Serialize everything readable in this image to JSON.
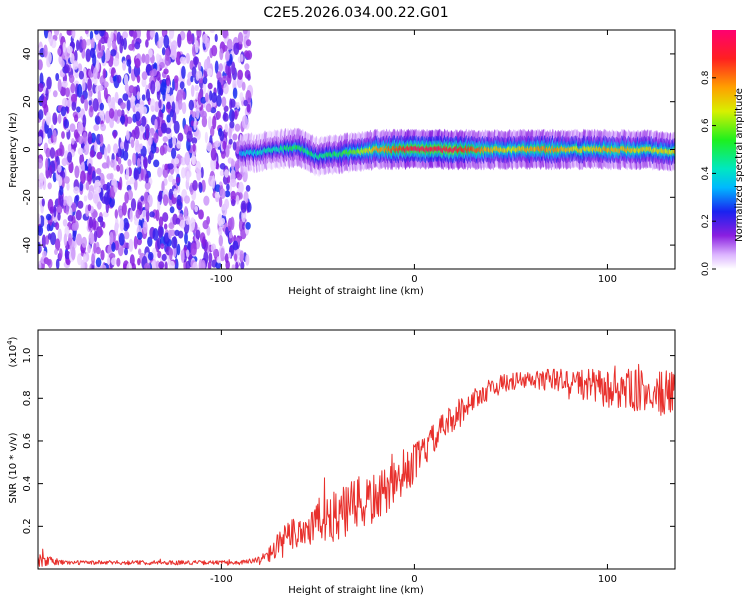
{
  "figure": {
    "title": "C2E5.2026.034.00.22.G01"
  },
  "chart_data": [
    {
      "type": "heatmap",
      "title": "C2E5.2026.034.00.22.G01",
      "xlabel": "Height of straight line (km)",
      "ylabel": "Frequency (Hz)",
      "xlim": [
        -195,
        135
      ],
      "ylim": [
        -50,
        50
      ],
      "x_ticks": [
        -100,
        0,
        100
      ],
      "x_tick_labels": [
        "-100",
        "0",
        "100"
      ],
      "y_ticks": [
        -40,
        -20,
        0,
        20,
        40
      ],
      "y_tick_labels": [
        "-40",
        "-20",
        "0",
        "20",
        "40"
      ],
      "colorbar": {
        "label": "Normalized spectral amplitude",
        "range": [
          0,
          1
        ],
        "ticks": [
          0.0,
          0.2,
          0.4,
          0.6,
          0.8
        ],
        "tick_labels": [
          "0.0",
          "0.2",
          "0.4",
          "0.6",
          "0.8"
        ]
      },
      "noise_region": {
        "x_range": [
          -195,
          -85
        ],
        "freq_range": [
          -50,
          50
        ]
      },
      "signal_band": [
        {
          "x": -90,
          "freq": -2,
          "amp": 0.35
        },
        {
          "x": -80,
          "freq": -1,
          "amp": 0.4
        },
        {
          "x": -70,
          "freq": 0,
          "amp": 0.45
        },
        {
          "x": -60,
          "freq": 1,
          "amp": 0.5
        },
        {
          "x": -50,
          "freq": -3,
          "amp": 0.45
        },
        {
          "x": -40,
          "freq": -2,
          "amp": 0.5
        },
        {
          "x": -30,
          "freq": -1,
          "amp": 0.6
        },
        {
          "x": -20,
          "freq": 0,
          "amp": 0.75
        },
        {
          "x": -10,
          "freq": 0,
          "amp": 0.85
        },
        {
          "x": 0,
          "freq": 0,
          "amp": 0.95
        },
        {
          "x": 10,
          "freq": 0,
          "amp": 0.95
        },
        {
          "x": 20,
          "freq": 0,
          "amp": 0.95
        },
        {
          "x": 30,
          "freq": 0,
          "amp": 0.85
        },
        {
          "x": 40,
          "freq": 0,
          "amp": 0.75
        },
        {
          "x": 50,
          "freq": 0,
          "amp": 0.7
        },
        {
          "x": 60,
          "freq": 0,
          "amp": 0.75
        },
        {
          "x": 70,
          "freq": 0,
          "amp": 0.8
        },
        {
          "x": 80,
          "freq": 0,
          "amp": 0.7
        },
        {
          "x": 90,
          "freq": 0,
          "amp": 0.7
        },
        {
          "x": 100,
          "freq": 0,
          "amp": 0.75
        },
        {
          "x": 110,
          "freq": 0,
          "amp": 0.75
        },
        {
          "x": 120,
          "freq": 0,
          "amp": 0.7
        },
        {
          "x": 130,
          "freq": -1,
          "amp": 0.7
        }
      ]
    },
    {
      "type": "line",
      "xlabel": "Height of straight line (km)",
      "ylabel": "SNR (10 * v/v)",
      "y_scale_label": "(x10",
      "y_scale_exponent": "4",
      "y_scale_close": ")",
      "xlim": [
        -195,
        135
      ],
      "ylim": [
        0.0,
        1.12
      ],
      "x_ticks": [
        -100,
        0,
        100
      ],
      "x_tick_labels": [
        "-100",
        "0",
        "100"
      ],
      "y_ticks": [
        0.2,
        0.4,
        0.6,
        0.8,
        1.0
      ],
      "y_tick_labels": [
        "0.2",
        "0.4",
        "0.6",
        "0.8",
        "1.0"
      ],
      "line_color": "#e8302c",
      "series": [
        {
          "name": "SNR",
          "x": [
            -195,
            -180,
            -160,
            -140,
            -120,
            -100,
            -90,
            -80,
            -75,
            -70,
            -65,
            -60,
            -55,
            -50,
            -45,
            -40,
            -35,
            -30,
            -25,
            -20,
            -15,
            -10,
            -5,
            0,
            5,
            10,
            15,
            20,
            25,
            30,
            35,
            40,
            50,
            60,
            70,
            80,
            90,
            100,
            110,
            120,
            130,
            135
          ],
          "y": [
            0.04,
            0.03,
            0.03,
            0.03,
            0.03,
            0.03,
            0.03,
            0.04,
            0.07,
            0.11,
            0.15,
            0.18,
            0.19,
            0.22,
            0.25,
            0.24,
            0.27,
            0.3,
            0.31,
            0.33,
            0.36,
            0.4,
            0.44,
            0.5,
            0.55,
            0.61,
            0.66,
            0.71,
            0.75,
            0.79,
            0.82,
            0.85,
            0.88,
            0.88,
            0.89,
            0.88,
            0.86,
            0.84,
            0.84,
            0.83,
            0.82,
            0.82
          ],
          "noise_amplitude": [
            0.03,
            0.01,
            0.01,
            0.01,
            0.01,
            0.01,
            0.01,
            0.02,
            0.04,
            0.07,
            0.08,
            0.09,
            0.1,
            0.11,
            0.12,
            0.12,
            0.13,
            0.13,
            0.13,
            0.12,
            0.11,
            0.1,
            0.1,
            0.09,
            0.08,
            0.07,
            0.07,
            0.07,
            0.06,
            0.05,
            0.05,
            0.05,
            0.04,
            0.05,
            0.05,
            0.06,
            0.08,
            0.09,
            0.1,
            0.1,
            0.11,
            0.1
          ]
        }
      ]
    }
  ]
}
